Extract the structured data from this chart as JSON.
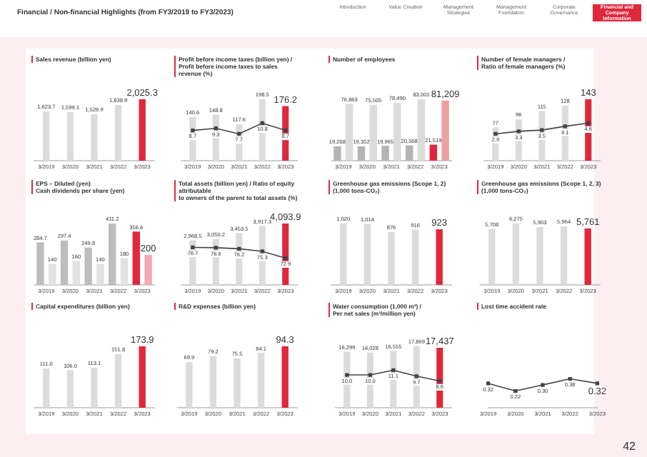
{
  "chart_data": [
    {
      "type": "other",
      "title": "Financial / Non-financial Highlights (from FY3/2019 to FY3/2023)",
      "annotations": [
        "Introduction",
        "Value Creation",
        "Management Strategies",
        "Management Foundation",
        "Corporate Governance",
        "Financial and Company Information"
      ]
    },
    {
      "type": "bar",
      "title": "Sales revenue (billion yen)",
      "categories": [
        "3/2019",
        "3/2020",
        "3/2021",
        "3/2022",
        "3/2023"
      ],
      "values": [
        1623.7,
        1599.1,
        1526.9,
        1838.9,
        2025.3
      ],
      "value_labels": [
        "1,623.7",
        "1,599.1",
        "1,526.9",
        "1,838.9",
        "2,025.3"
      ],
      "colors": [
        "#dcdcdc",
        "#dcdcdc",
        "#dcdcdc",
        "#dcdcdc",
        "#e0283c"
      ],
      "tick_labels": "x"
    },
    {
      "type": "bar",
      "title": "Profit before income taxes (billion yen) /",
      "subtitle": "Profit before income taxes to sales revenue (%)",
      "categories": [
        "3/2019",
        "3/2020",
        "3/2021",
        "3/2022",
        "3/2023"
      ],
      "tick_labels": "x",
      "series": [
        {
          "type": "bar",
          "color": "#dcdcdc",
          "colors": [
            "#dcdcdc",
            "#dcdcdc",
            "#dcdcdc",
            "#dcdcdc",
            "#e0283c"
          ],
          "values": [
            140.6,
            148.8,
            117.6,
            198.5,
            176.2
          ],
          "value_labels": [
            "140.6",
            "148.8",
            "117.6",
            "198.5",
            "176.2"
          ]
        },
        {
          "type": "line",
          "axis": "y2",
          "color": "#444444",
          "marker": "square",
          "values": [
            8.7,
            9.3,
            7.7,
            10.8,
            8.7
          ],
          "value_labels": [
            "8.7",
            "9.3",
            "7.7",
            "10.8",
            "8.7"
          ]
        }
      ]
    },
    {
      "type": "bar",
      "title": "Number of employees",
      "categories": [
        "3/2019",
        "3/2020",
        "3/2021",
        "3/2022",
        "3/2023"
      ],
      "tick_labels": "x",
      "series": [
        {
          "color": "#b4b4b4",
          "colors": [
            "#b4b4b4",
            "#b4b4b4",
            "#b4b4b4",
            "#b4b4b4",
            "#e0283c"
          ],
          "values": [
            19268,
            19352,
            19965,
            20568,
            21519
          ],
          "value_labels": [
            "19,268",
            "19,352",
            "19,965",
            "20,568",
            "21,519"
          ]
        },
        {
          "color": "#dcdcdc",
          "colors": [
            "#dcdcdc",
            "#dcdcdc",
            "#dcdcdc",
            "#dcdcdc",
            "#eea0a0"
          ],
          "values": [
            76863,
            75505,
            78490,
            83001,
            81209
          ],
          "value_labels": [
            "76,863",
            "75,505",
            "78,490",
            "83,001",
            "81,209"
          ]
        }
      ]
    },
    {
      "type": "bar",
      "title": "Number of female managers /",
      "subtitle": "Ratio of female managers (%)",
      "categories": [
        "3/2019",
        "3/2020",
        "3/2021",
        "3/2022",
        "3/2023"
      ],
      "tick_labels": "x",
      "series": [
        {
          "type": "bar",
          "color": "#dcdcdc",
          "colors": [
            "#dcdcdc",
            "#dcdcdc",
            "#dcdcdc",
            "#dcdcdc",
            "#e0283c"
          ],
          "values": [
            77,
            96,
            115,
            128,
            143
          ],
          "value_labels": [
            "77",
            "96",
            "115",
            "128",
            "143"
          ]
        },
        {
          "type": "line",
          "axis": "y2",
          "color": "#444444",
          "marker": "square",
          "values": [
            2.9,
            3.3,
            3.5,
            4.1,
            4.6
          ],
          "value_labels": [
            "2.9",
            "3.3",
            "3.5",
            "4.1",
            "4.6"
          ]
        }
      ]
    },
    {
      "type": "bar",
      "title": "EPS – Diluted (yen)",
      "subtitle": "Cash dividends per share (yen)",
      "categories": [
        "3/2019",
        "3/2020",
        "3/2021",
        "3/2022",
        "3/2023"
      ],
      "tick_labels": "x",
      "series": [
        {
          "color": "#bdbdbd",
          "colors": [
            "#bdbdbd",
            "#bdbdbd",
            "#bdbdbd",
            "#bdbdbd",
            "#e0283c"
          ],
          "values": [
            284.7,
            297.4,
            249.8,
            411.2,
            356.6
          ],
          "value_labels": [
            "284.7",
            "297.4",
            "249.8",
            "411.2",
            "356.6"
          ]
        },
        {
          "color": "#e2e2e2",
          "colors": [
            "#e2e2e2",
            "#e2e2e2",
            "#e2e2e2",
            "#e2e2e2",
            "#f2a8b0"
          ],
          "values": [
            140,
            160,
            140,
            180,
            200
          ],
          "value_labels": [
            "140",
            "160",
            "140",
            "180",
            "200"
          ]
        }
      ]
    },
    {
      "type": "bar",
      "title": "Total assets (billion yen) / Ratio of equity attributable",
      "subtitle": "to owners of the parent to total assets (%)",
      "categories": [
        "3/2019",
        "3/2020",
        "3/2021",
        "3/2022",
        "3/2023"
      ],
      "tick_labels": "x",
      "series": [
        {
          "type": "bar",
          "color": "#dcdcdc",
          "colors": [
            "#dcdcdc",
            "#dcdcdc",
            "#dcdcdc",
            "#dcdcdc",
            "#e0283c"
          ],
          "values": [
            2968.5,
            3050.2,
            3453.5,
            3917.3,
            4093.9
          ],
          "value_labels": [
            "2,968.5",
            "3,050.2",
            "3,453.5",
            "3,917.3",
            "4,093.9"
          ]
        },
        {
          "type": "line",
          "axis": "y2",
          "color": "#444444",
          "marker": "square",
          "values": [
            76.7,
            76.6,
            76.2,
            75.3,
            72.9
          ],
          "value_labels": [
            "76.7",
            "76.6",
            "76.2",
            "75.3",
            "72.9"
          ]
        }
      ]
    },
    {
      "type": "bar",
      "title": "Greenhouse gas emissions (Scope 1, 2) (1,000 tons-CO₂)",
      "categories": [
        "3/2019",
        "3/2020",
        "3/2021",
        "3/2022",
        "3/2023"
      ],
      "values": [
        1020,
        1014,
        876,
        916,
        923
      ],
      "value_labels": [
        "1,020",
        "1,014",
        "876",
        "916",
        "923"
      ],
      "colors": [
        "#dcdcdc",
        "#dcdcdc",
        "#dcdcdc",
        "#dcdcdc",
        "#e0283c"
      ],
      "tick_labels": "x"
    },
    {
      "type": "bar",
      "title": "Greenhouse gas emissions (Scope 1, 2, 3) (1,000 tons-CO₂)",
      "categories": [
        "3/2019",
        "3/2020",
        "3/2021",
        "3/2022",
        "3/2023"
      ],
      "values": [
        5708,
        6275,
        5903,
        5964,
        5761
      ],
      "value_labels": [
        "5,708",
        "6,275",
        "5,903",
        "5,964",
        "5,761"
      ],
      "colors": [
        "#dcdcdc",
        "#dcdcdc",
        "#dcdcdc",
        "#dcdcdc",
        "#e0283c"
      ],
      "tick_labels": "x"
    },
    {
      "type": "bar",
      "title": "Capital expenditures (billion yen)",
      "categories": [
        "3/2019",
        "3/2020",
        "3/2021",
        "3/2022",
        "3/2023"
      ],
      "values": [
        111.0,
        106.0,
        113.1,
        151.8,
        173.9
      ],
      "value_labels": [
        "111.0",
        "106.0",
        "113.1",
        "151.8",
        "173.9"
      ],
      "colors": [
        "#dcdcdc",
        "#dcdcdc",
        "#dcdcdc",
        "#dcdcdc",
        "#e0283c"
      ],
      "tick_labels": "x"
    },
    {
      "type": "bar",
      "title": "R&D expenses (billion yen)",
      "categories": [
        "3/2019",
        "3/2020",
        "3/2021",
        "3/2022",
        "3/2023"
      ],
      "values": [
        69.9,
        79.2,
        75.5,
        84.1,
        94.3
      ],
      "value_labels": [
        "69.9",
        "79.2",
        "75.5",
        "84.1",
        "94.3"
      ],
      "colors": [
        "#dcdcdc",
        "#dcdcdc",
        "#dcdcdc",
        "#dcdcdc",
        "#e0283c"
      ],
      "tick_labels": "x"
    },
    {
      "type": "bar",
      "title": "Water consumption (1,000 m³) /",
      "subtitle": "Per net sales (m³/million yen)",
      "categories": [
        "3/2019",
        "3/2020",
        "3/2021",
        "3/2022",
        "3/2023"
      ],
      "tick_labels": "x",
      "series": [
        {
          "type": "bar",
          "color": "#dcdcdc",
          "colors": [
            "#dcdcdc",
            "#dcdcdc",
            "#dcdcdc",
            "#dcdcdc",
            "#e0283c"
          ],
          "values": [
            16299,
            16028,
            16555,
            17869,
            17437
          ],
          "value_labels": [
            "16,299",
            "16,028",
            "16,555",
            "17,869",
            "17,437"
          ]
        },
        {
          "type": "line",
          "axis": "y2",
          "color": "#444444",
          "marker": "square",
          "values": [
            10.0,
            10.0,
            11.1,
            9.7,
            8.6
          ],
          "value_labels": [
            "10.0",
            "10.0",
            "11.1",
            "9.7",
            "8.6"
          ]
        }
      ]
    },
    {
      "type": "line",
      "title": "Lost time accident rate",
      "categories": [
        "3/2019",
        "3/2020",
        "3/2021",
        "3/2022",
        "3/2023"
      ],
      "tick_labels": "x",
      "marker": "square",
      "color": "#444444",
      "values": [
        0.32,
        0.22,
        0.3,
        0.38,
        0.32
      ],
      "value_labels": [
        "0.32",
        "0.22",
        "0.30",
        "0.38",
        "0.32"
      ]
    },
    {
      "type": "other",
      "annotations": [
        "42"
      ]
    }
  ]
}
